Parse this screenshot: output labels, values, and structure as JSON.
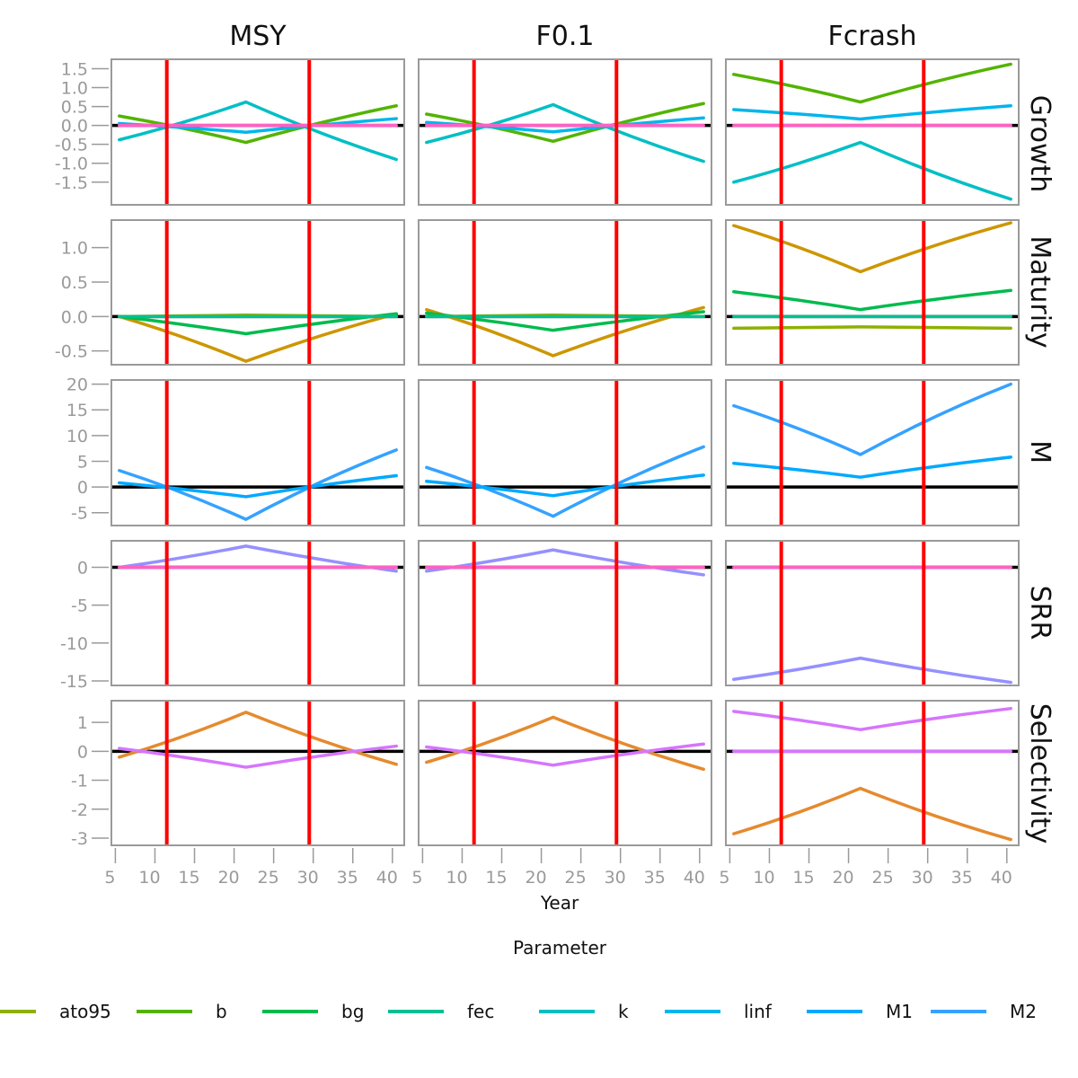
{
  "chart_data": {
    "type": "line",
    "xlabel": "Year",
    "legend_title": "Parameter",
    "legend_position": "bottom",
    "xlim": [
      4.5,
      41.5
    ],
    "x_ticks": [
      5,
      10,
      15,
      20,
      25,
      30,
      35,
      40
    ],
    "reference_lines": {
      "vertical_x": [
        11.5,
        29.5
      ],
      "vertical_color": "#ff0000",
      "horizontal_y": 0,
      "horizontal_color": "#000000"
    },
    "x": [
      5.5,
      21.5,
      40.5
    ],
    "columns": [
      "MSY",
      "F0.1",
      "Fcrash"
    ],
    "rows": [
      {
        "name": "Growth",
        "ylim": [
          -2.1,
          1.75
        ],
        "y_ticks": [
          1.5,
          1.0,
          0.5,
          0.0,
          -0.5,
          -1.0,
          -1.5
        ],
        "y_tick_labels": [
          "1.5",
          "1.0",
          "0.5",
          "0.0",
          "-0.5",
          "-1.0",
          "-1.5"
        ]
      },
      {
        "name": "Maturity",
        "ylim": [
          -0.7,
          1.4
        ],
        "y_ticks": [
          1.0,
          0.5,
          0.0,
          -0.5
        ],
        "y_tick_labels": [
          "1.0",
          "0.5",
          "0.0",
          "-0.5"
        ]
      },
      {
        "name": "M",
        "ylim": [
          -7.5,
          20.8
        ],
        "y_ticks": [
          20,
          15,
          10,
          5,
          0,
          -5
        ],
        "y_tick_labels": [
          "20",
          "15",
          "10",
          "5",
          "0",
          "-5"
        ]
      },
      {
        "name": "SRR",
        "ylim": [
          -15.6,
          3.5
        ],
        "y_ticks": [
          0,
          -5,
          -10,
          -15
        ],
        "y_tick_labels": [
          "0",
          "-5",
          "-10",
          "-15"
        ]
      },
      {
        "name": "Selectivity",
        "ylim": [
          -3.25,
          1.75
        ],
        "y_ticks": [
          1,
          0,
          -1,
          -2,
          -3
        ],
        "y_tick_labels": [
          "1",
          "0",
          "-1",
          "-2",
          "-3"
        ]
      }
    ],
    "series": [
      {
        "panel": [
          0,
          0
        ],
        "name": "b",
        "color": "#53b400",
        "values": [
          0.25,
          -0.45,
          0.52
        ]
      },
      {
        "panel": [
          0,
          0
        ],
        "name": "k",
        "color": "#00bfc4",
        "values": [
          -0.38,
          0.62,
          -0.9
        ]
      },
      {
        "panel": [
          0,
          0
        ],
        "name": "linf",
        "color": "#00b6eb",
        "values": [
          0.05,
          -0.18,
          0.18
        ]
      },
      {
        "panel": [
          0,
          0
        ],
        "name": "pink",
        "color": "#ff61c3",
        "values": [
          0.0,
          0.0,
          0.0
        ]
      },
      {
        "panel": [
          0,
          1
        ],
        "name": "b",
        "color": "#53b400",
        "values": [
          0.3,
          -0.42,
          0.58
        ]
      },
      {
        "panel": [
          0,
          1
        ],
        "name": "k",
        "color": "#00bfc4",
        "values": [
          -0.45,
          0.55,
          -0.95
        ]
      },
      {
        "panel": [
          0,
          1
        ],
        "name": "linf",
        "color": "#00b6eb",
        "values": [
          0.08,
          -0.17,
          0.2
        ]
      },
      {
        "panel": [
          0,
          1
        ],
        "name": "pink",
        "color": "#ff61c3",
        "values": [
          0.0,
          0.0,
          0.0
        ]
      },
      {
        "panel": [
          0,
          2
        ],
        "name": "b",
        "color": "#53b400",
        "values": [
          1.35,
          0.62,
          1.62
        ]
      },
      {
        "panel": [
          0,
          2
        ],
        "name": "linf",
        "color": "#00b6eb",
        "values": [
          0.42,
          0.17,
          0.52
        ]
      },
      {
        "panel": [
          0,
          2
        ],
        "name": "k",
        "color": "#00bfc4",
        "values": [
          -1.5,
          -0.45,
          -1.95
        ]
      },
      {
        "panel": [
          0,
          2
        ],
        "name": "pink",
        "color": "#ff61c3",
        "values": [
          0.0,
          0.0,
          0.0
        ]
      },
      {
        "panel": [
          1,
          0
        ],
        "name": "gold",
        "color": "#cd9600",
        "values": [
          0.0,
          -0.65,
          0.04
        ]
      },
      {
        "panel": [
          1,
          0
        ],
        "name": "bg",
        "color": "#00bb4e",
        "values": [
          0.0,
          -0.25,
          0.04
        ]
      },
      {
        "panel": [
          1,
          0
        ],
        "name": "ato95",
        "color": "#8fb000",
        "values": [
          0.0,
          0.02,
          0.0
        ]
      },
      {
        "panel": [
          1,
          0
        ],
        "name": "fec",
        "color": "#00c094",
        "values": [
          0.0,
          0.0,
          0.0
        ]
      },
      {
        "panel": [
          1,
          1
        ],
        "name": "gold",
        "color": "#cd9600",
        "values": [
          0.1,
          -0.57,
          0.13
        ]
      },
      {
        "panel": [
          1,
          1
        ],
        "name": "bg",
        "color": "#00bb4e",
        "values": [
          0.05,
          -0.2,
          0.07
        ]
      },
      {
        "panel": [
          1,
          1
        ],
        "name": "ato95",
        "color": "#8fb000",
        "values": [
          0.0,
          0.02,
          0.0
        ]
      },
      {
        "panel": [
          1,
          1
        ],
        "name": "fec",
        "color": "#00c094",
        "values": [
          0.0,
          0.0,
          0.0
        ]
      },
      {
        "panel": [
          1,
          2
        ],
        "name": "gold",
        "color": "#cd9600",
        "values": [
          1.32,
          0.65,
          1.36
        ]
      },
      {
        "panel": [
          1,
          2
        ],
        "name": "bg",
        "color": "#00bb4e",
        "values": [
          0.36,
          0.1,
          0.38
        ]
      },
      {
        "panel": [
          1,
          2
        ],
        "name": "fec",
        "color": "#00c094",
        "values": [
          0.0,
          0.0,
          0.0
        ]
      },
      {
        "panel": [
          1,
          2
        ],
        "name": "ato95",
        "color": "#8fb000",
        "values": [
          -0.17,
          -0.15,
          -0.17
        ]
      },
      {
        "panel": [
          2,
          0
        ],
        "name": "M2",
        "color": "#35a2ff",
        "values": [
          3.2,
          -6.3,
          7.2
        ]
      },
      {
        "panel": [
          2,
          0
        ],
        "name": "M1",
        "color": "#00a9ff",
        "values": [
          0.8,
          -1.9,
          2.2
        ]
      },
      {
        "panel": [
          2,
          1
        ],
        "name": "M2",
        "color": "#35a2ff",
        "values": [
          3.8,
          -5.7,
          7.8
        ]
      },
      {
        "panel": [
          2,
          1
        ],
        "name": "M1",
        "color": "#00a9ff",
        "values": [
          1.1,
          -1.7,
          2.3
        ]
      },
      {
        "panel": [
          2,
          2
        ],
        "name": "M2",
        "color": "#35a2ff",
        "values": [
          15.8,
          6.3,
          20.0
        ]
      },
      {
        "panel": [
          2,
          2
        ],
        "name": "M1",
        "color": "#00a9ff",
        "values": [
          4.6,
          1.9,
          5.8
        ]
      },
      {
        "panel": [
          3,
          0
        ],
        "name": "violet",
        "color": "#9590ff",
        "values": [
          0.0,
          2.8,
          -0.5
        ]
      },
      {
        "panel": [
          3,
          0
        ],
        "name": "pink",
        "color": "#ff61c3",
        "values": [
          0.0,
          0.0,
          0.0
        ]
      },
      {
        "panel": [
          3,
          1
        ],
        "name": "violet",
        "color": "#9590ff",
        "values": [
          -0.5,
          2.3,
          -1.0
        ]
      },
      {
        "panel": [
          3,
          1
        ],
        "name": "pink",
        "color": "#ff61c3",
        "values": [
          0.0,
          0.0,
          0.0
        ]
      },
      {
        "panel": [
          3,
          2
        ],
        "name": "violet",
        "color": "#9590ff",
        "values": [
          -14.8,
          -12.0,
          -15.2
        ]
      },
      {
        "panel": [
          3,
          2
        ],
        "name": "pink",
        "color": "#ff61c3",
        "values": [
          0.0,
          0.0,
          0.0
        ]
      },
      {
        "panel": [
          4,
          0
        ],
        "name": "orange",
        "color": "#e58a2e",
        "values": [
          -0.2,
          1.35,
          -0.45
        ]
      },
      {
        "panel": [
          4,
          0
        ],
        "name": "magenta",
        "color": "#d575fe",
        "values": [
          0.1,
          -0.55,
          0.18
        ]
      },
      {
        "panel": [
          4,
          1
        ],
        "name": "orange",
        "color": "#e58a2e",
        "values": [
          -0.38,
          1.18,
          -0.62
        ]
      },
      {
        "panel": [
          4,
          1
        ],
        "name": "magenta",
        "color": "#d575fe",
        "values": [
          0.15,
          -0.48,
          0.25
        ]
      },
      {
        "panel": [
          4,
          2
        ],
        "name": "magenta",
        "color": "#d575fe",
        "values": [
          1.38,
          0.75,
          1.48
        ]
      },
      {
        "panel": [
          4,
          2
        ],
        "name": "orange",
        "color": "#e58a2e",
        "values": [
          -2.85,
          -1.28,
          -3.05
        ]
      },
      {
        "panel": [
          4,
          2
        ],
        "name": "flat",
        "color": "#d575fe",
        "values": [
          0.0,
          0.0,
          0.0
        ]
      }
    ],
    "legend": [
      {
        "label": "ato95",
        "color": "#8fb000"
      },
      {
        "label": "b",
        "color": "#53b400"
      },
      {
        "label": "bg",
        "color": "#00bb4e"
      },
      {
        "label": "fec",
        "color": "#00c094"
      },
      {
        "label": "k",
        "color": "#00bfc4"
      },
      {
        "label": "linf",
        "color": "#00b6eb"
      },
      {
        "label": "M1",
        "color": "#00a9ff"
      },
      {
        "label": "M2",
        "color": "#35a2ff"
      }
    ]
  }
}
